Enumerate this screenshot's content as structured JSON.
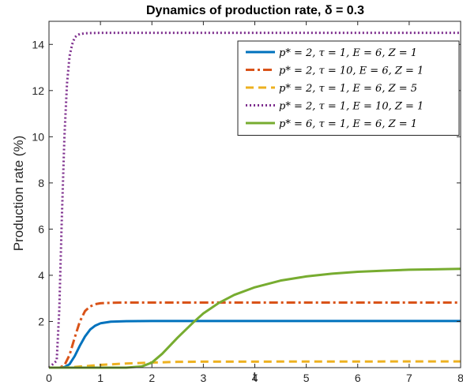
{
  "chart_data": {
    "type": "line",
    "title": "Dynamics of production rate, δ = 0.3",
    "xlabel": "t",
    "ylabel": "Production rate (%)",
    "xlim": [
      0,
      8
    ],
    "ylim": [
      0,
      15
    ],
    "xticks": [
      "0",
      "1",
      "2",
      "3",
      "4",
      "5",
      "6",
      "7",
      "8"
    ],
    "yticks": [
      "2",
      "4",
      "6",
      "8",
      "10",
      "12",
      "14"
    ],
    "legend_position": "top-right",
    "grid": false,
    "series": [
      {
        "name": "p* = 2, τ = 1, E = 6, Z = 1",
        "color": "#0072BD",
        "dash": "solid",
        "x": [
          0,
          0.2,
          0.3,
          0.4,
          0.5,
          0.6,
          0.7,
          0.8,
          0.9,
          1.0,
          1.2,
          1.5,
          2.0,
          8.0
        ],
        "y": [
          0,
          0,
          0.02,
          0.15,
          0.5,
          0.95,
          1.35,
          1.65,
          1.82,
          1.92,
          1.99,
          2.01,
          2.02,
          2.02
        ]
      },
      {
        "name": "p* = 2, τ = 10, E = 6, Z = 1",
        "color": "#D95319",
        "dash": "dashdot",
        "x": [
          0,
          0.2,
          0.3,
          0.4,
          0.5,
          0.6,
          0.7,
          0.8,
          0.9,
          1.0,
          1.2,
          1.5,
          8.0
        ],
        "y": [
          0,
          0,
          0.1,
          0.55,
          1.3,
          2.0,
          2.45,
          2.65,
          2.75,
          2.79,
          2.81,
          2.82,
          2.82
        ]
      },
      {
        "name": "p* = 2, τ = 1, E = 6, Z = 5",
        "color": "#EDB120",
        "dash": "dashed",
        "x": [
          0,
          0.3,
          0.5,
          0.8,
          1.0,
          1.5,
          2.0,
          2.5,
          3.0,
          8.0
        ],
        "y": [
          0,
          0,
          0.03,
          0.08,
          0.12,
          0.18,
          0.22,
          0.25,
          0.26,
          0.27
        ]
      },
      {
        "name": "p* = 2, τ = 1, E = 10, Z = 1",
        "color": "#7E2F8E",
        "dash": "dotted",
        "x": [
          0,
          0.15,
          0.2,
          0.25,
          0.3,
          0.35,
          0.4,
          0.45,
          0.5,
          0.55,
          0.6,
          0.7,
          0.8,
          1.0,
          8.0
        ],
        "y": [
          0,
          0.3,
          2.5,
          6.5,
          10.0,
          12.3,
          13.5,
          14.0,
          14.3,
          14.4,
          14.45,
          14.48,
          14.49,
          14.5,
          14.5
        ]
      },
      {
        "name": "p* = 6, τ = 1, E = 6, Z = 1",
        "color": "#77AC30",
        "dash": "solid",
        "x": [
          0,
          1.5,
          1.8,
          2.0,
          2.2,
          2.5,
          2.8,
          3.0,
          3.3,
          3.6,
          4.0,
          4.5,
          5.0,
          5.5,
          6.0,
          6.5,
          7.0,
          7.5,
          8.0
        ],
        "y": [
          0,
          0,
          0.05,
          0.22,
          0.6,
          1.3,
          1.95,
          2.35,
          2.8,
          3.15,
          3.48,
          3.77,
          3.95,
          4.07,
          4.15,
          4.2,
          4.24,
          4.26,
          4.28
        ]
      }
    ]
  }
}
